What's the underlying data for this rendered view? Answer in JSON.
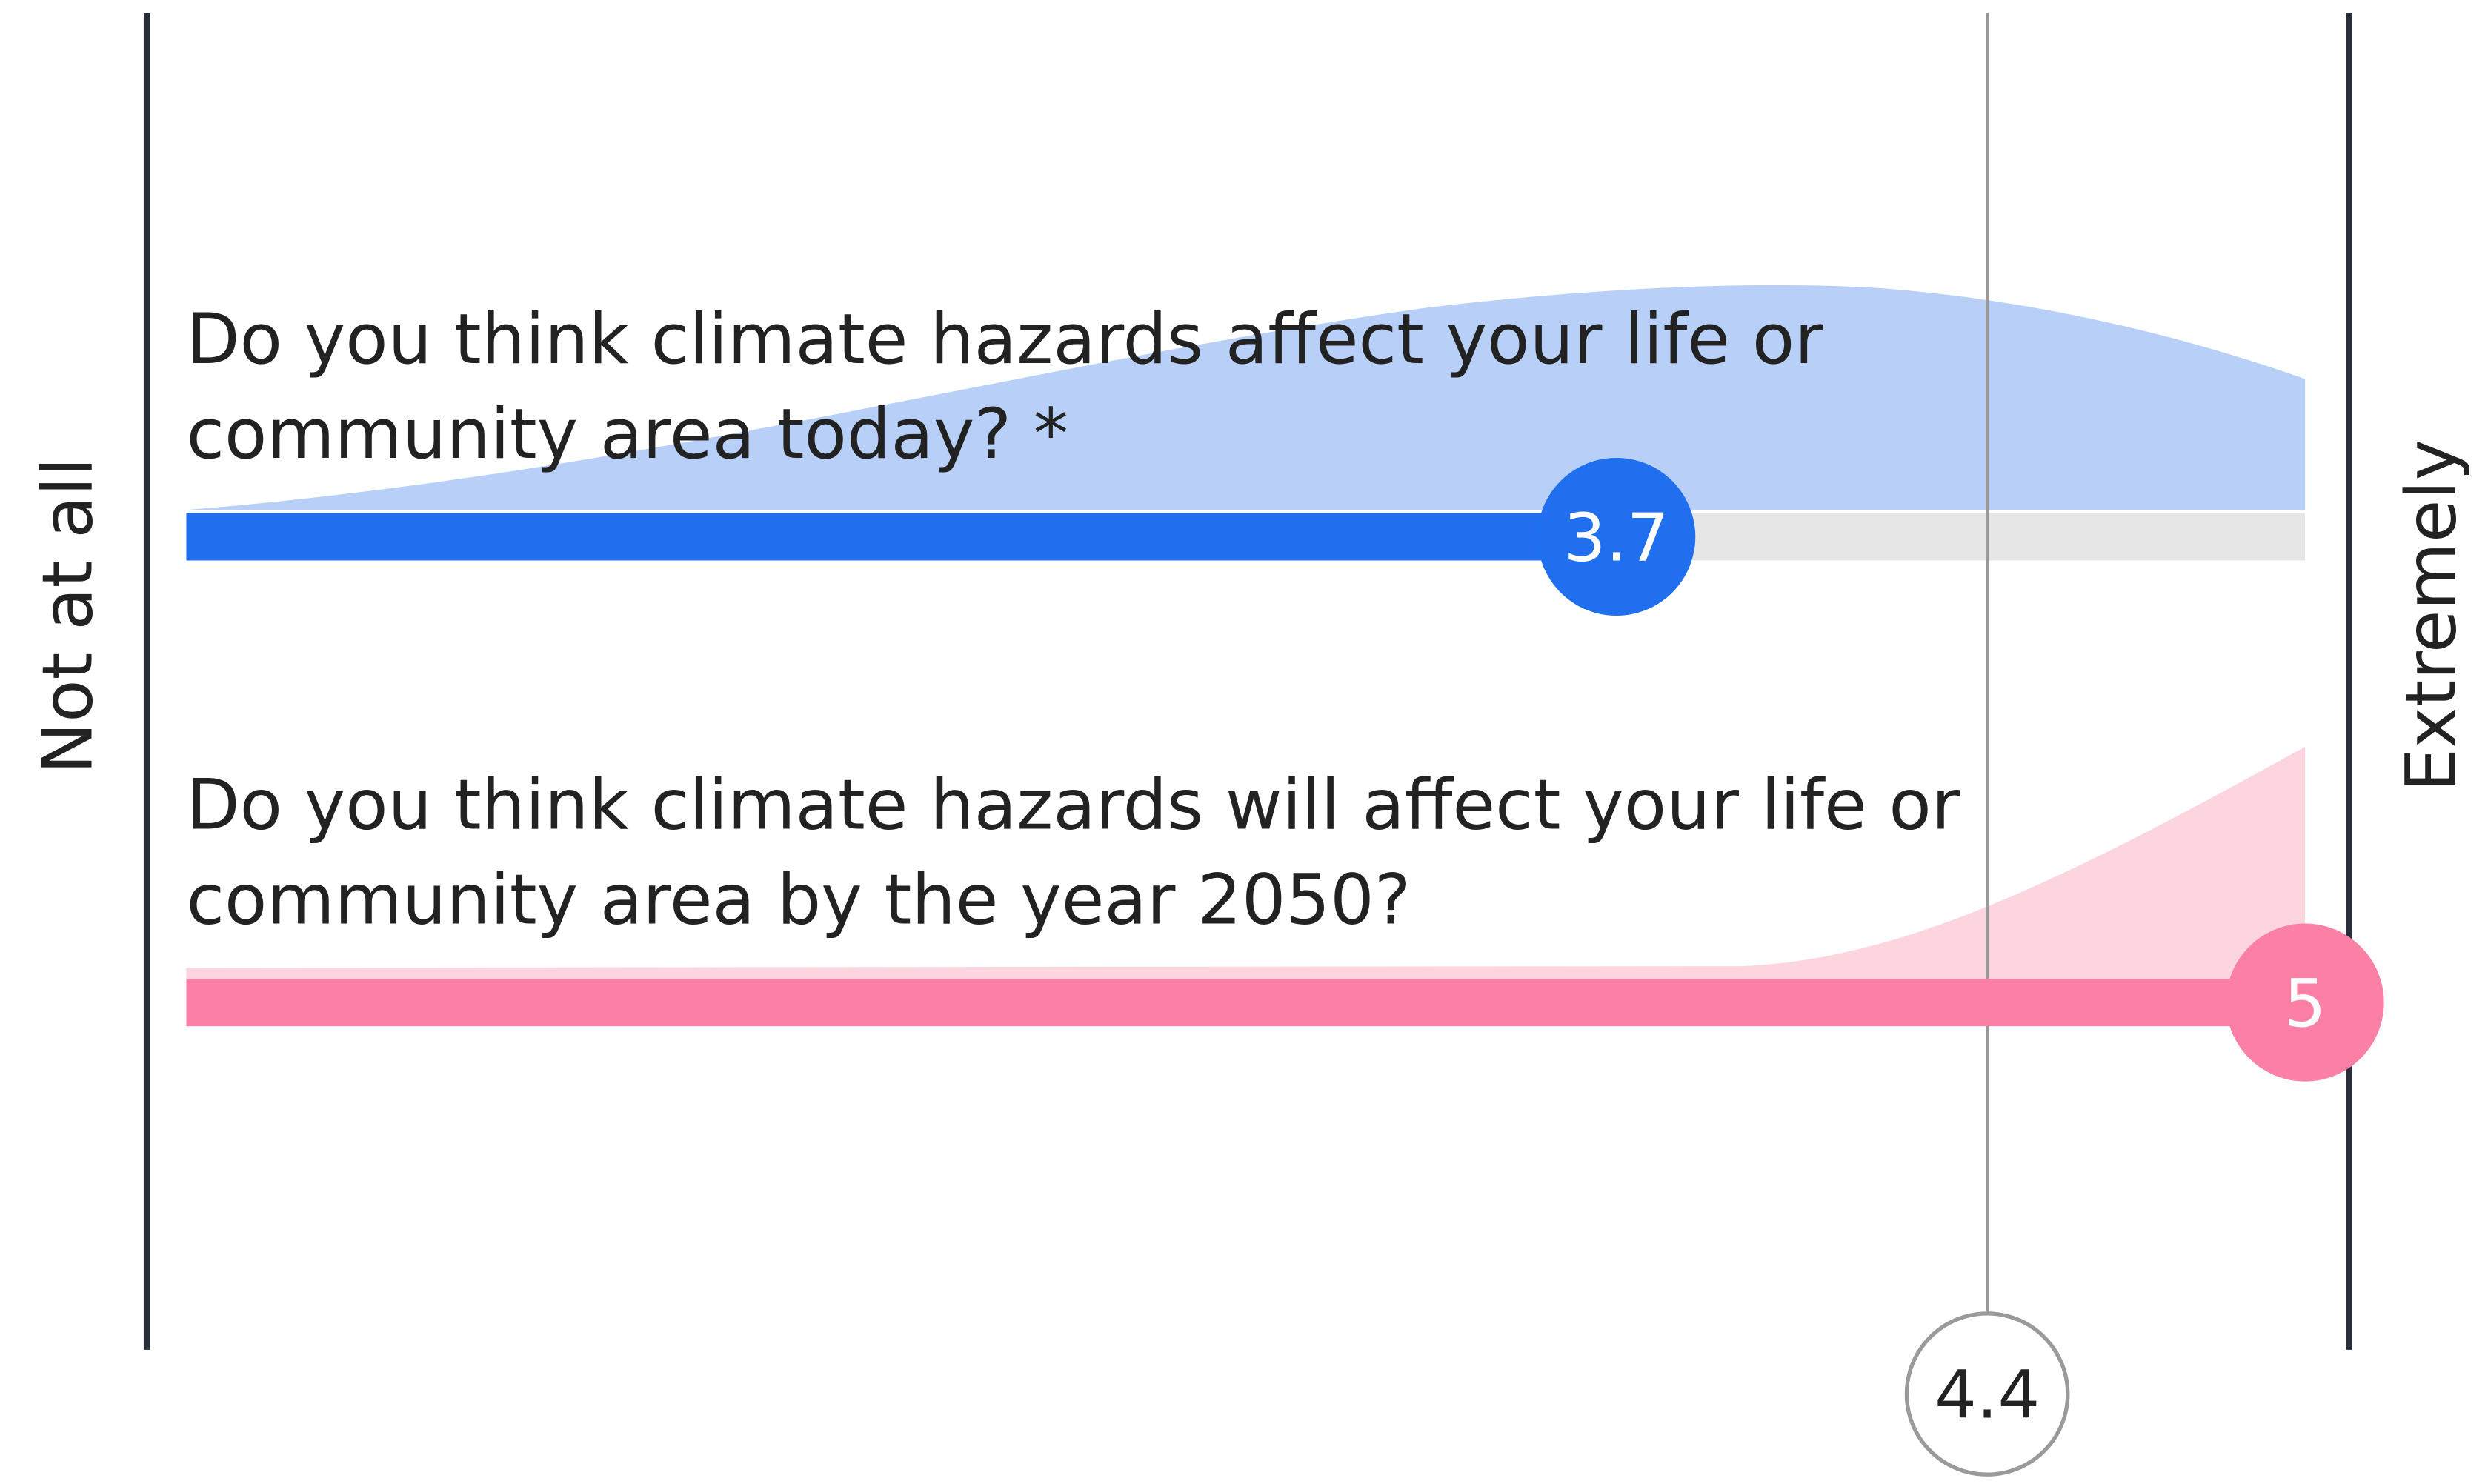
{
  "scale": {
    "min_label": "Not at all",
    "max_label": "Extremely",
    "range": [
      1,
      5
    ]
  },
  "questions": [
    {
      "lines": [
        "Do you think climate hazards affect your life or",
        "community area today? *"
      ],
      "value": 3.7,
      "color": "#1f6fef",
      "track": "#e6e6e6"
    },
    {
      "lines": [
        "Do you think climate hazards will affect your life or",
        "community area by the year 2050?"
      ],
      "value": 5,
      "color": "#fb80a6",
      "track": "#fb80a6"
    }
  ],
  "average": 4.4
}
